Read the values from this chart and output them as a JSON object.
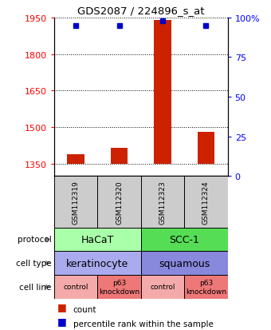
{
  "title": "GDS2087 / 224896_s_at",
  "samples": [
    "GSM112319",
    "GSM112320",
    "GSM112323",
    "GSM112324"
  ],
  "count_values": [
    1390,
    1415,
    1940,
    1480
  ],
  "percentile_values": [
    95,
    95,
    98,
    95
  ],
  "ylim_left": [
    1300,
    1950
  ],
  "ylim_right": [
    0,
    100
  ],
  "yticks_left": [
    1350,
    1500,
    1650,
    1800,
    1950
  ],
  "yticks_right": [
    0,
    25,
    50,
    75,
    100
  ],
  "ytick_labels_right": [
    "0",
    "25",
    "50",
    "75",
    "100%"
  ],
  "cell_line_data": [
    [
      "HaCaT",
      0,
      2,
      "#aaffaa"
    ],
    [
      "SCC-1",
      2,
      4,
      "#55dd55"
    ]
  ],
  "cell_type_data": [
    [
      "keratinocyte",
      0,
      2,
      "#aaaaee"
    ],
    [
      "squamous",
      2,
      4,
      "#8888dd"
    ]
  ],
  "protocol_data": [
    [
      "control",
      0,
      1,
      "#f4aaaa"
    ],
    [
      "p63\nknockdown",
      1,
      2,
      "#ee7777"
    ],
    [
      "control",
      2,
      3,
      "#f4aaaa"
    ],
    [
      "p63\nknockdown",
      3,
      4,
      "#ee7777"
    ]
  ],
  "bar_color": "#cc2200",
  "dot_color": "#0000cc",
  "legend_items": [
    "count",
    "percentile rank within the sample"
  ],
  "row_labels": [
    "cell line",
    "cell type",
    "protocol"
  ],
  "background_color": "#ffffff",
  "sample_box_color": "#cccccc",
  "baseline": 1350
}
